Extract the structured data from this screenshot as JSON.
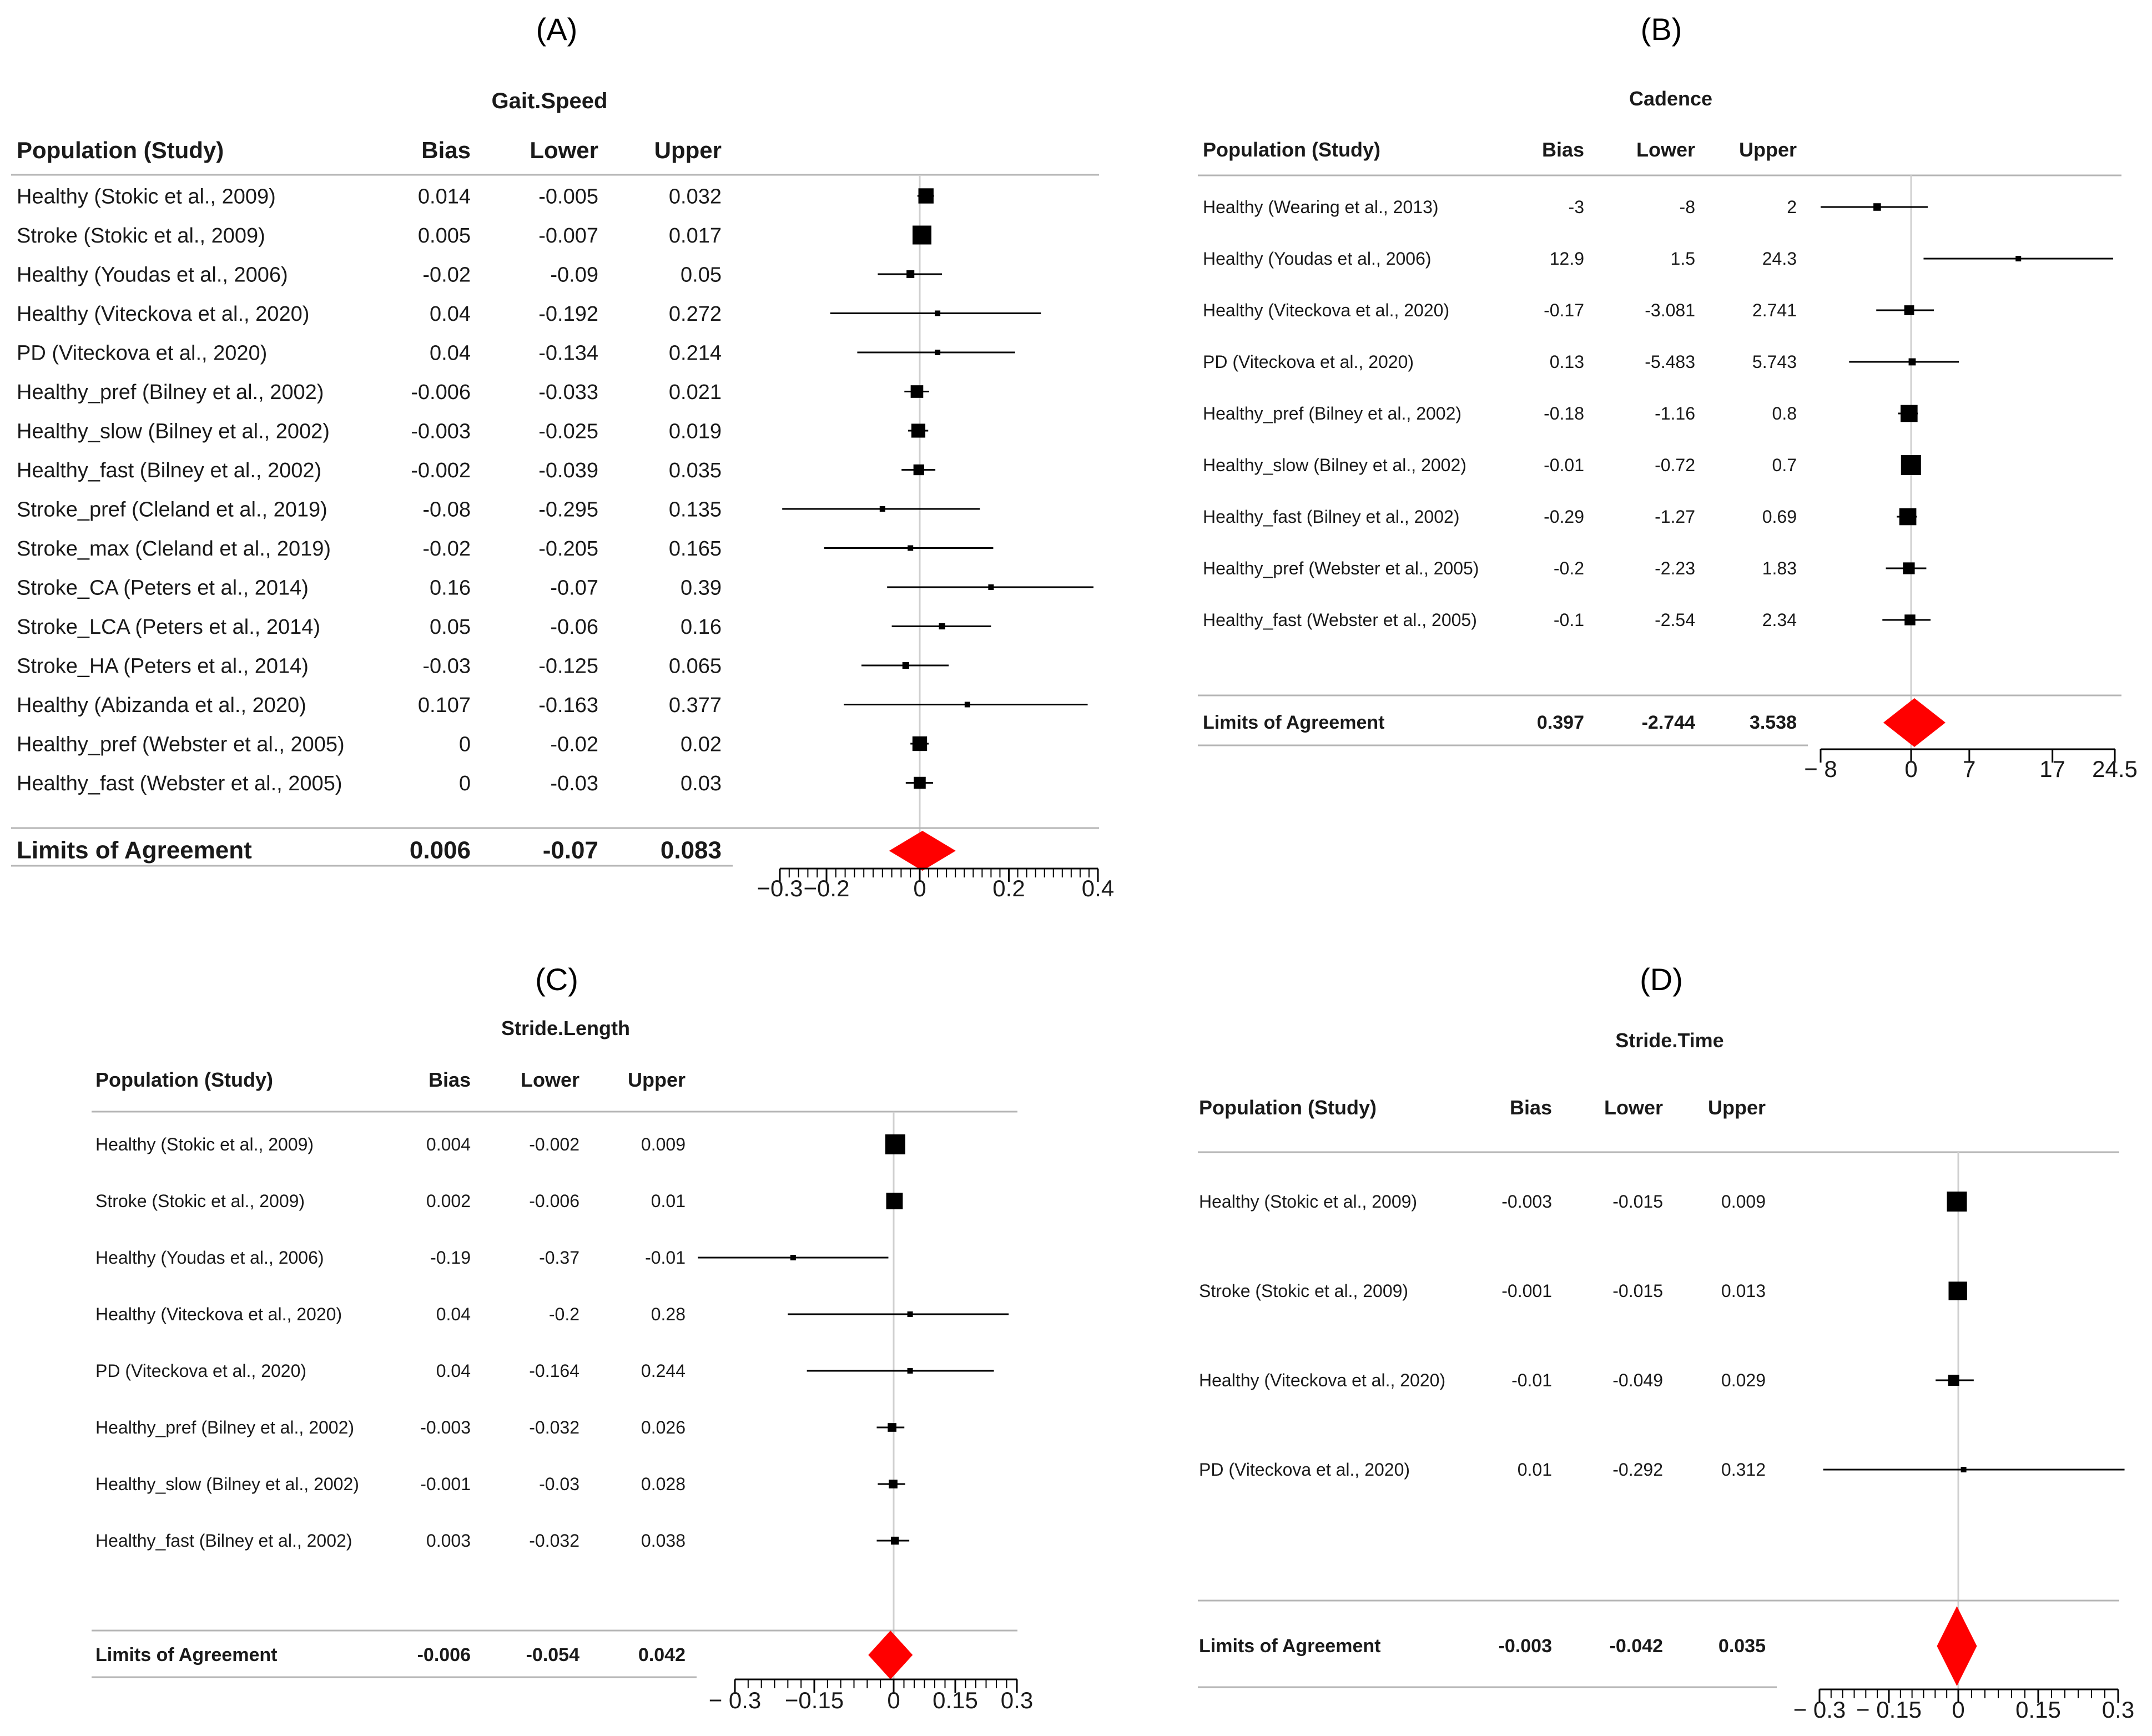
{
  "panels": [
    {
      "label": "(A)",
      "chart_data": {
        "type": "forest",
        "title": "Gait.Speed",
        "columns": [
          "Population (Study)",
          "Bias",
          "Lower",
          "Upper"
        ],
        "rows": [
          {
            "study": "Healthy (Stokic et al., 2009)",
            "bias": "0.014",
            "lower": "-0.005",
            "upper": "0.032"
          },
          {
            "study": "Stroke (Stokic et al., 2009)",
            "bias": "0.005",
            "lower": "-0.007",
            "upper": "0.017"
          },
          {
            "study": "Healthy (Youdas et al., 2006)",
            "bias": "-0.02",
            "lower": "-0.09",
            "upper": "0.05"
          },
          {
            "study": "Healthy (Viteckova et al., 2020)",
            "bias": "0.04",
            "lower": "-0.192",
            "upper": "0.272"
          },
          {
            "study": "PD (Viteckova et al., 2020)",
            "bias": "0.04",
            "lower": "-0.134",
            "upper": "0.214"
          },
          {
            "study": "Healthy_pref (Bilney et al., 2002)",
            "bias": "-0.006",
            "lower": "-0.033",
            "upper": "0.021"
          },
          {
            "study": "Healthy_slow (Bilney et al., 2002)",
            "bias": "-0.003",
            "lower": "-0.025",
            "upper": "0.019"
          },
          {
            "study": "Healthy_fast (Bilney et al., 2002)",
            "bias": "-0.002",
            "lower": "-0.039",
            "upper": "0.035"
          },
          {
            "study": "Stroke_pref (Cleland et al., 2019)",
            "bias": "-0.08",
            "lower": "-0.295",
            "upper": "0.135"
          },
          {
            "study": "Stroke_max (Cleland et al., 2019)",
            "bias": "-0.02",
            "lower": "-0.205",
            "upper": "0.165"
          },
          {
            "study": "Stroke_CA (Peters et al., 2014)",
            "bias": "0.16",
            "lower": "-0.07",
            "upper": "0.39"
          },
          {
            "study": "Stroke_LCA (Peters et al., 2014)",
            "bias": "0.05",
            "lower": "-0.06",
            "upper": "0.16"
          },
          {
            "study": "Stroke_HA (Peters et al., 2014)",
            "bias": "-0.03",
            "lower": "-0.125",
            "upper": "0.065"
          },
          {
            "study": "Healthy (Abizanda et al., 2020)",
            "bias": "0.107",
            "lower": "-0.163",
            "upper": "0.377"
          },
          {
            "study": "Healthy_pref (Webster et al., 2005)",
            "bias": "0",
            "lower": "-0.02",
            "upper": "0.02"
          },
          {
            "study": "Healthy_fast (Webster et al., 2005)",
            "bias": "0",
            "lower": "-0.03",
            "upper": "0.03"
          }
        ],
        "summary": {
          "study": "Limits of Agreement",
          "bias": "0.006",
          "lower": "-0.07",
          "upper": "0.083"
        },
        "axis_ticks": [
          "−0.3",
          "−0.2",
          "0",
          "0.2",
          "0.4"
        ],
        "axis_tick_values": [
          -0.3,
          -0.2,
          0,
          0.2,
          0.4
        ],
        "xlim": [
          -0.3,
          0.4
        ],
        "minor_step": 0.02
      }
    },
    {
      "label": "(B)",
      "chart_data": {
        "type": "forest",
        "title": "Cadence",
        "columns": [
          "Population (Study)",
          "Bias",
          "Lower",
          "Upper"
        ],
        "rows": [
          {
            "study": "Healthy (Wearing et al., 2013)",
            "bias": "-3",
            "lower": "-8",
            "upper": "2"
          },
          {
            "study": "Healthy (Youdas et al., 2006)",
            "bias": "12.9",
            "lower": "1.5",
            "upper": "24.3"
          },
          {
            "study": "Healthy (Viteckova et al., 2020)",
            "bias": "-0.17",
            "lower": "-3.081",
            "upper": "2.741"
          },
          {
            "study": "PD (Viteckova et al., 2020)",
            "bias": "0.13",
            "lower": "-5.483",
            "upper": "5.743"
          },
          {
            "study": "Healthy_pref (Bilney et al., 2002)",
            "bias": "-0.18",
            "lower": "-1.16",
            "upper": "0.8"
          },
          {
            "study": "Healthy_slow (Bilney et al., 2002)",
            "bias": "-0.01",
            "lower": "-0.72",
            "upper": "0.7"
          },
          {
            "study": "Healthy_fast (Bilney et al., 2002)",
            "bias": "-0.29",
            "lower": "-1.27",
            "upper": "0.69"
          },
          {
            "study": "Healthy_pref (Webster et al., 2005)",
            "bias": "-0.2",
            "lower": "-2.23",
            "upper": "1.83"
          },
          {
            "study": "Healthy_fast (Webster et al., 2005)",
            "bias": "-0.1",
            "lower": "-2.54",
            "upper": "2.34"
          }
        ],
        "summary": {
          "study": "Limits of Agreement",
          "bias": "0.397",
          "lower": "-2.744",
          "upper": "3.538"
        },
        "axis_ticks": [
          "− 8",
          "0",
          "7",
          "17",
          "24.5"
        ],
        "axis_tick_values": [
          -8,
          0,
          7,
          17,
          24.5
        ],
        "xlim": [
          -8,
          24.5
        ],
        "minor_step": 0
      }
    },
    {
      "label": "(C)",
      "chart_data": {
        "type": "forest",
        "title": "Stride.Length",
        "columns": [
          "Population (Study)",
          "Bias",
          "Lower",
          "Upper"
        ],
        "rows": [
          {
            "study": "Healthy (Stokic et al., 2009)",
            "bias": "0.004",
            "lower": "-0.002",
            "upper": "0.009"
          },
          {
            "study": "Stroke (Stokic et al., 2009)",
            "bias": "0.002",
            "lower": "-0.006",
            "upper": "0.01"
          },
          {
            "study": "Healthy (Youdas et al., 2006)",
            "bias": "-0.19",
            "lower": "-0.37",
            "upper": "-0.01"
          },
          {
            "study": "Healthy (Viteckova et al., 2020)",
            "bias": "0.04",
            "lower": "-0.2",
            "upper": "0.28"
          },
          {
            "study": "PD (Viteckova et al., 2020)",
            "bias": "0.04",
            "lower": "-0.164",
            "upper": "0.244"
          },
          {
            "study": "Healthy_pref (Bilney et al., 2002)",
            "bias": "-0.003",
            "lower": "-0.032",
            "upper": "0.026"
          },
          {
            "study": "Healthy_slow (Bilney et al., 2002)",
            "bias": "-0.001",
            "lower": "-0.03",
            "upper": "0.028"
          },
          {
            "study": "Healthy_fast (Bilney et al., 2002)",
            "bias": "0.003",
            "lower": "-0.032",
            "upper": "0.038"
          }
        ],
        "summary": {
          "study": "Limits of Agreement",
          "bias": "-0.006",
          "lower": "-0.054",
          "upper": "0.042"
        },
        "axis_ticks": [
          "− 0.3",
          "−0.15",
          "0",
          "0.15",
          "0.3"
        ],
        "axis_tick_values": [
          -0.3,
          -0.15,
          0,
          0.15,
          0.3
        ],
        "xlim": [
          -0.3,
          0.3
        ],
        "minor_step": 0.025
      }
    },
    {
      "label": "(D)",
      "chart_data": {
        "type": "forest",
        "title": "Stride.Time",
        "columns": [
          "Population (Study)",
          "Bias",
          "Lower",
          "Upper"
        ],
        "rows": [
          {
            "study": "Healthy (Stokic et al., 2009)",
            "bias": "-0.003",
            "lower": "-0.015",
            "upper": "0.009"
          },
          {
            "study": "Stroke (Stokic et al., 2009)",
            "bias": "-0.001",
            "lower": "-0.015",
            "upper": "0.013"
          },
          {
            "study": "Healthy (Viteckova et al., 2020)",
            "bias": "-0.01",
            "lower": "-0.049",
            "upper": "0.029"
          },
          {
            "study": "PD (Viteckova et al., 2020)",
            "bias": "0.01",
            "lower": "-0.292",
            "upper": "0.312"
          }
        ],
        "summary": {
          "study": "Limits of Agreement",
          "bias": "-0.003",
          "lower": "-0.042",
          "upper": "0.035"
        },
        "axis_ticks": [
          "− 0.3",
          "− 0.15",
          "0",
          "0.15",
          "0.3"
        ],
        "axis_tick_values": [
          -0.3,
          -0.15,
          0,
          0.15,
          0.3
        ],
        "xlim": [
          -0.3,
          0.3
        ],
        "minor_step": 0.025
      }
    }
  ]
}
